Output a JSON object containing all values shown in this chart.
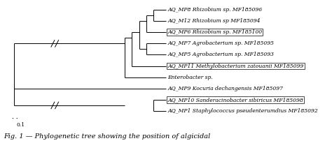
{
  "taxa": [
    {
      "label": "AQ_MP8 Rhizobium sp. MF185096",
      "y": 10,
      "boxed": false
    },
    {
      "label": "AQ_M12 Rhizobium sp MF185094",
      "y": 9,
      "boxed": false
    },
    {
      "label": "AQ_MP6 Rhizobium sp. MF185100",
      "y": 8,
      "boxed": true
    },
    {
      "label": "AQ_MP7 Agrobacterium sp. MF185095",
      "y": 7,
      "boxed": false
    },
    {
      "label": "AQ_MP5 Agrobacterium sp. MF185093",
      "y": 6,
      "boxed": false
    },
    {
      "label": "AQ_MP11 Methylobacterium zatouanii MF185099",
      "y": 5,
      "boxed": true
    },
    {
      "label": "Enterobacter sp.",
      "y": 4,
      "boxed": false
    },
    {
      "label": "AQ_MP9 Kocuria dechangensis MF185097",
      "y": 3,
      "boxed": false
    },
    {
      "label": "AQ_MP10 Sanderacinobacter sibiricus MF185098",
      "y": 2,
      "boxed": true
    },
    {
      "label": "AQ_MP1 Staphylococcus pseudenterumdius MF185092",
      "y": 1,
      "boxed": false
    }
  ],
  "scale_bar_label": "0.1",
  "background_color": "#ffffff",
  "line_color": "#000000",
  "text_color": "#000000",
  "fig_caption": "Fig. 1 — Phylogenetic tree showing the position of algicidal"
}
